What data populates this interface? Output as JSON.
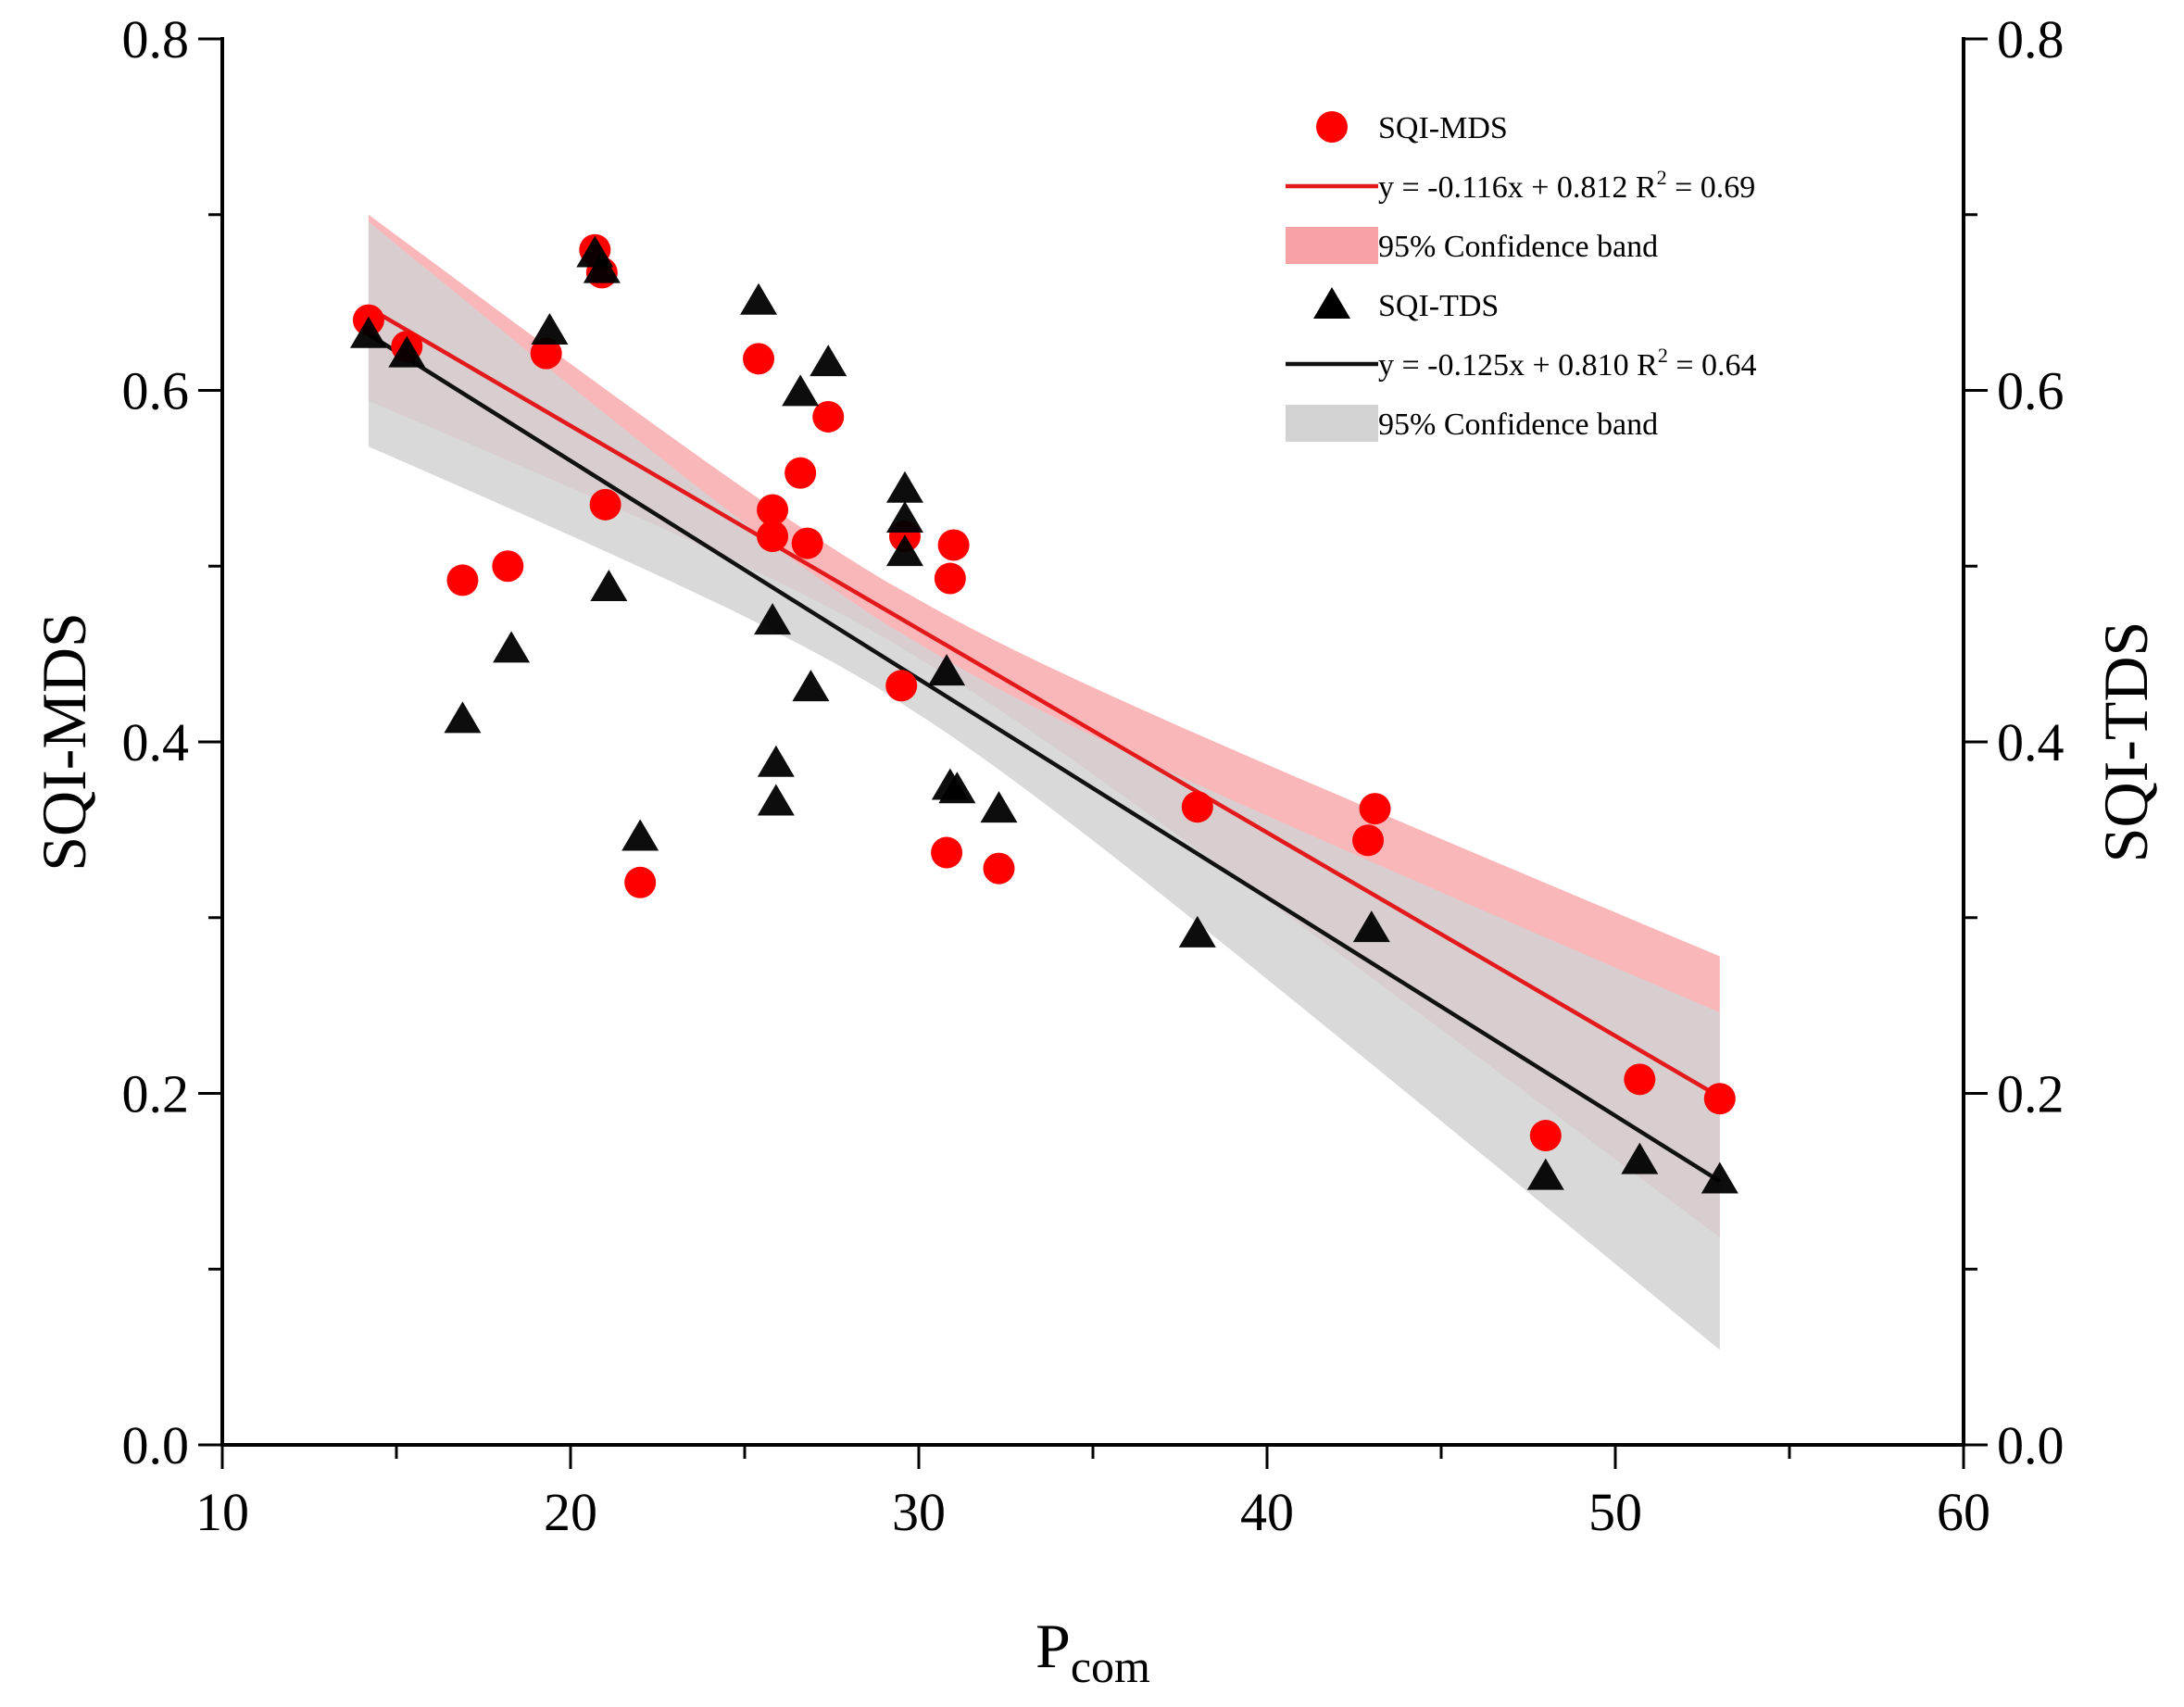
{
  "chart_data": {
    "type": "scatter",
    "xlabel_main": "P",
    "xlabel_sub": "com",
    "ylabel_left": "SQI-MDS",
    "ylabel_right": "SQI-TDS",
    "xlim": [
      10,
      60
    ],
    "ylim": [
      0.0,
      0.8
    ],
    "x_ticks": [
      "10",
      "20",
      "30",
      "40",
      "50",
      "60"
    ],
    "y_ticks": [
      "0.0",
      "0.2",
      "0.4",
      "0.6",
      "0.8"
    ],
    "y_ticks_right": [
      "0.0",
      "0.2",
      "0.4",
      "0.6",
      "0.8"
    ],
    "series": [
      {
        "name": "SQI-MDS",
        "marker": "circle",
        "color": "#ff0000",
        "x": [
          14.2,
          15.3,
          16.9,
          18.2,
          19.3,
          20.7,
          20.9,
          21.0,
          22.0,
          25.4,
          25.8,
          25.8,
          26.6,
          26.8,
          27.4,
          29.5,
          29.6,
          30.9,
          31.0,
          30.8,
          32.3,
          38.0,
          42.9,
          43.1,
          48.0,
          50.7,
          53.0
        ],
        "y": [
          0.64,
          0.625,
          0.492,
          0.5,
          0.621,
          0.68,
          0.667,
          0.535,
          0.32,
          0.618,
          0.532,
          0.517,
          0.553,
          0.513,
          0.585,
          0.432,
          0.517,
          0.493,
          0.512,
          0.337,
          0.328,
          0.363,
          0.344,
          0.362,
          0.176,
          0.208,
          0.197
        ]
      },
      {
        "name": "SQI-TDS",
        "marker": "triangle",
        "color": "#000000",
        "x": [
          14.2,
          15.3,
          16.9,
          18.3,
          19.4,
          20.7,
          20.9,
          21.1,
          22.0,
          25.4,
          25.8,
          25.9,
          25.9,
          26.6,
          26.9,
          27.4,
          29.6,
          29.6,
          29.6,
          30.8,
          30.9,
          31.1,
          32.3,
          38.0,
          43.0,
          48.0,
          50.7,
          53.0
        ],
        "y": [
          0.632,
          0.621,
          0.413,
          0.453,
          0.634,
          0.678,
          0.669,
          0.488,
          0.346,
          0.651,
          0.469,
          0.388,
          0.366,
          0.599,
          0.431,
          0.616,
          0.544,
          0.527,
          0.508,
          0.44,
          0.375,
          0.373,
          0.362,
          0.291,
          0.294,
          0.153,
          0.162,
          0.151
        ]
      }
    ],
    "fits": [
      {
        "name": "SQI-MDS fit",
        "color": "#e3191c",
        "band_color": "#f7a3a6",
        "x_range": [
          14.2,
          53.0
        ],
        "y_at_ends": [
          0.647,
          0.198
        ],
        "band_upper_at_ends": [
          0.7,
          0.278
        ],
        "band_lower_at_ends": [
          0.594,
          0.118
        ]
      },
      {
        "name": "SQI-TDS fit",
        "color": "#111111",
        "band_color": "#d2d2d2",
        "x_range": [
          14.2,
          53.0
        ],
        "y_at_ends": [
          0.632,
          0.15
        ],
        "band_upper_at_ends": [
          0.696,
          0.246
        ],
        "band_lower_at_ends": [
          0.568,
          0.054
        ]
      }
    ],
    "legend": {
      "position": "top-right",
      "entries": [
        {
          "type": "circle",
          "color": "#ff0000",
          "label": "SQI-MDS"
        },
        {
          "type": "line",
          "color": "#e3191c",
          "label": "y = -0.116x + 0.812  R",
          "sup": "2",
          "suffix": " = 0.69"
        },
        {
          "type": "patch",
          "color": "#f7a3a6",
          "label": "95% Confidence band"
        },
        {
          "type": "triangle",
          "color": "#000000",
          "label": "SQI-TDS"
        },
        {
          "type": "line",
          "color": "#111111",
          "label": "y = -0.125x + 0.810  R",
          "sup": "2",
          "suffix": " = 0.64"
        },
        {
          "type": "patch",
          "color": "#d2d2d2",
          "label": "95% Confidence band"
        }
      ]
    }
  }
}
